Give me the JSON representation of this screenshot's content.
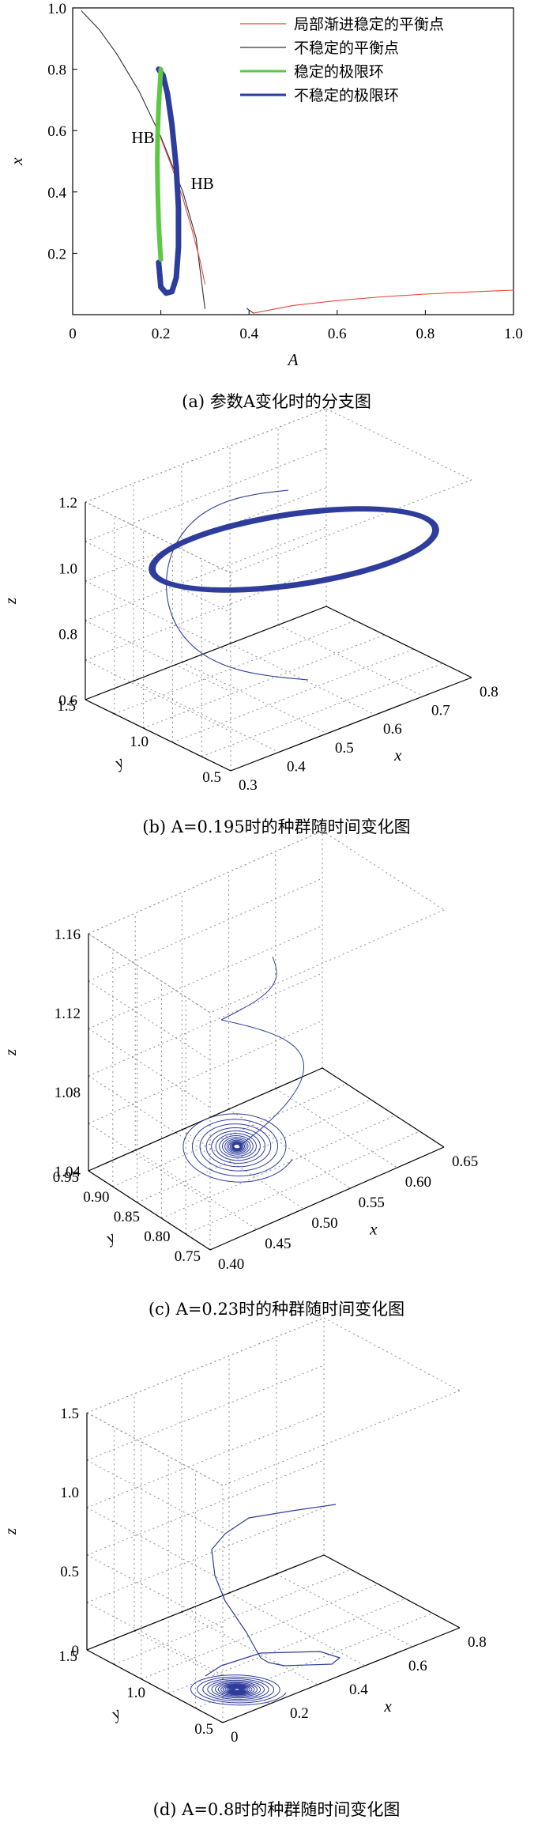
{
  "captions": {
    "a": "(a) 参数A变化时的分支图",
    "b": "(b) A=0.195时的种群随时间变化图",
    "c": "(c) A=0.23时的种群随时间变化图",
    "d": "(d) A=0.8时的种群随时间变化图"
  },
  "chart_data": [
    {
      "type": "line",
      "id": "a",
      "title": "",
      "xlabel": "A",
      "ylabel": "x",
      "xlim": [
        0,
        1
      ],
      "ylim": [
        0,
        1
      ],
      "xticks": [
        "0",
        "0.2",
        "0.4",
        "0.6",
        "0.8",
        "1.0"
      ],
      "yticks": [
        "0.2",
        "0.4",
        "0.6",
        "0.8",
        "1.0"
      ],
      "legend_position": "top-right",
      "series": [
        {
          "name": "局部渐进稳定的平衡点",
          "color": "#e8453c",
          "segments": [
            {
              "x": [
                0.2,
                0.22,
                0.25,
                0.27,
                0.29,
                0.3
              ],
              "y": [
                0.575,
                0.5,
                0.38,
                0.28,
                0.17,
                0.1
              ]
            },
            {
              "x": [
                0.41,
                0.5,
                0.6,
                0.7,
                0.8,
                0.9,
                1.0
              ],
              "y": [
                0.005,
                0.03,
                0.046,
                0.058,
                0.067,
                0.074,
                0.08
              ]
            }
          ]
        },
        {
          "name": "不稳定的平衡点",
          "color": "#303030",
          "segments": [
            {
              "x": [
                0.02,
                0.06,
                0.1,
                0.15,
                0.2,
                0.25,
                0.28,
                0.3
              ],
              "y": [
                0.99,
                0.93,
                0.85,
                0.73,
                0.58,
                0.4,
                0.25,
                0.02
              ]
            },
            {
              "x": [
                0.395,
                0.41
              ],
              "y": [
                0.02,
                0.005
              ]
            }
          ]
        },
        {
          "name": "稳定的极限环",
          "color": "#5cc843",
          "segments": [
            {
              "x": [
                0.2,
                0.198,
                0.195,
                0.193,
                0.192,
                0.193,
                0.195,
                0.198,
                0.2
              ],
              "y": [
                0.8,
                0.75,
                0.68,
                0.6,
                0.5,
                0.4,
                0.3,
                0.22,
                0.18
              ]
            }
          ]
        },
        {
          "name": "不稳定的极限环",
          "color": "#2e3d9c",
          "segments": [
            {
              "x": [
                0.195,
                0.205,
                0.215,
                0.225,
                0.235,
                0.24,
                0.24,
                0.235,
                0.225,
                0.212,
                0.2,
                0.195
              ],
              "y": [
                0.8,
                0.78,
                0.72,
                0.62,
                0.48,
                0.35,
                0.22,
                0.12,
                0.075,
                0.07,
                0.09,
                0.17
              ]
            }
          ]
        }
      ],
      "annotations": [
        {
          "text": "HB",
          "x": 0.2,
          "y": 0.575
        },
        {
          "text": "HB",
          "x": 0.243,
          "y": 0.43
        }
      ]
    },
    {
      "type": "line",
      "id": "b",
      "zlabel": "z",
      "ylabel": "y",
      "xlabel": "x",
      "zticks": [
        "0.6",
        "0.8",
        "1.0",
        "1.2"
      ],
      "yticks": [
        "0.5",
        "1.0",
        "1.5"
      ],
      "xticks": [
        "0.3",
        "0.4",
        "0.5",
        "0.6",
        "0.7",
        "0.8"
      ],
      "series_color": "#2e3d9c",
      "description_values": {
        "limit_cycle_center": [
          0.55,
          1.0,
          1.0
        ]
      }
    },
    {
      "type": "line",
      "id": "c",
      "zlabel": "z",
      "ylabel": "y",
      "xlabel": "x",
      "zticks": [
        "1.04",
        "1.08",
        "1.12",
        "1.16"
      ],
      "yticks": [
        "0.75",
        "0.80",
        "0.85",
        "0.90",
        "0.95"
      ],
      "xticks": [
        "0.40",
        "0.45",
        "0.50",
        "0.55",
        "0.60",
        "0.65"
      ],
      "series_color": "#2e3d9c"
    },
    {
      "type": "line",
      "id": "d",
      "zlabel": "z",
      "ylabel": "y",
      "xlabel": "x",
      "zticks": [
        "0",
        "0.5",
        "1.0",
        "1.5"
      ],
      "yticks": [
        "0.5",
        "1.0",
        "1.5"
      ],
      "xticks": [
        "0",
        "0.2",
        "0.4",
        "0.6",
        "0.8"
      ],
      "series_color": "#2e3d9c"
    }
  ]
}
